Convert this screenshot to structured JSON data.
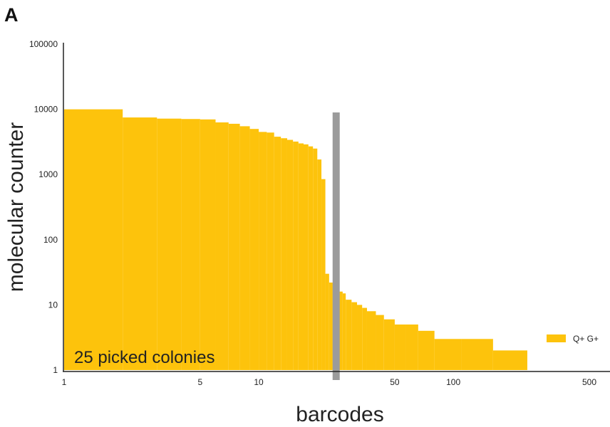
{
  "chart_data": {
    "type": "bar",
    "panel_label": "A",
    "xlabel": "barcodes",
    "ylabel": "molecular counter",
    "x_scale": "log",
    "y_scale": "log",
    "xlim": [
      1,
      500
    ],
    "ylim": [
      1,
      100000
    ],
    "x_ticks": [
      1,
      5,
      10,
      50,
      100,
      500
    ],
    "x_tick_labels": [
      "1",
      "5",
      "10",
      "50",
      "100",
      "500"
    ],
    "y_ticks": [
      1,
      10,
      100,
      1000,
      10000,
      100000
    ],
    "y_tick_labels": [
      "1",
      "10",
      "100",
      "1000",
      "10000",
      "100000"
    ],
    "grid": false,
    "legend_position": "bottom-right",
    "color": "#FDC30C",
    "cutoff_color": "#9B9B9B",
    "cutoff_rank": 25,
    "annotation": "25 picked colonies",
    "series": [
      {
        "name": "Q+ G+",
        "x": [
          1,
          2,
          3,
          4,
          5,
          6,
          7,
          8,
          9,
          10,
          11,
          12,
          13,
          14,
          15,
          16,
          17,
          18,
          19,
          20,
          21,
          22,
          23,
          24,
          25,
          26,
          27,
          28,
          30,
          32,
          34,
          36,
          40,
          44,
          50,
          57,
          66,
          80,
          110,
          160,
          240,
          480
        ],
        "values": [
          10000,
          7500,
          7200,
          7100,
          7000,
          6300,
          6000,
          5500,
          5000,
          4500,
          4400,
          3800,
          3600,
          3400,
          3200,
          3000,
          2900,
          2700,
          2500,
          1700,
          850,
          30,
          22,
          20,
          18,
          16,
          15,
          12,
          11,
          10,
          9,
          8,
          7,
          6,
          5,
          5,
          4,
          3,
          3,
          2,
          1,
          1
        ]
      }
    ]
  }
}
